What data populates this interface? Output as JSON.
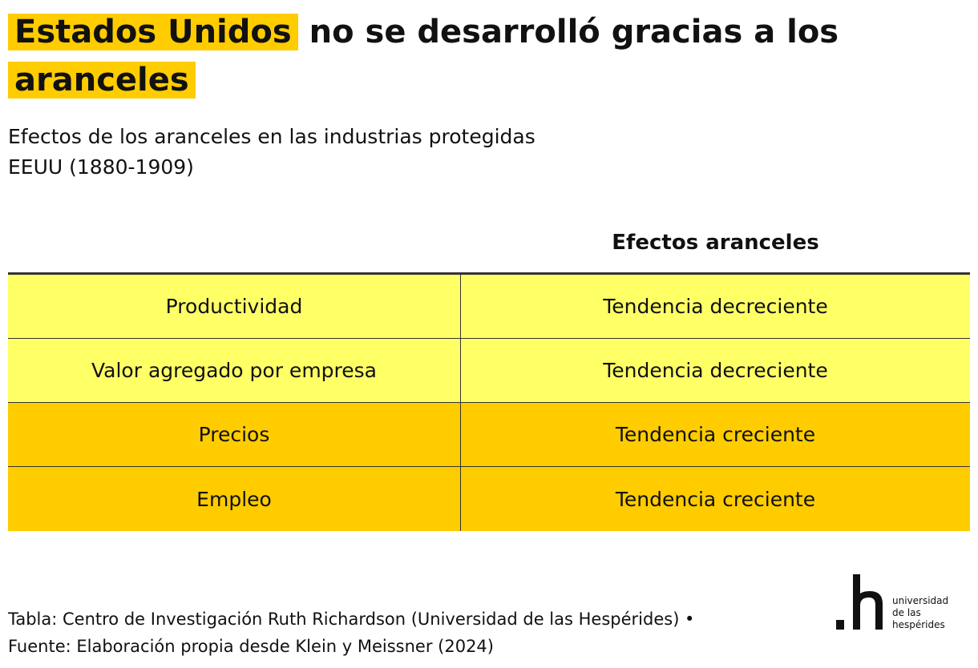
{
  "title": {
    "highlight_1": "Estados Unidos",
    "middle": "no se desarrolló gracias a los",
    "highlight_2": "aranceles"
  },
  "subtitle": {
    "line1": "Efectos de los aranceles en las industrias protegidas",
    "line2": "EEUU (1880-1909)"
  },
  "chart_data": {
    "type": "table",
    "columns": [
      "",
      "Efectos aranceles"
    ],
    "rows": [
      {
        "label": "Productividad",
        "value": "Tendencia decreciente",
        "color": "#ffff66"
      },
      {
        "label": "Valor agregado por empresa",
        "value": "Tendencia decreciente",
        "color": "#ffff66"
      },
      {
        "label": "Precios",
        "value": "Tendencia creciente",
        "color": "#ffcc00"
      },
      {
        "label": "Empleo",
        "value": "Tendencia creciente",
        "color": "#ffcc00"
      }
    ]
  },
  "footer": {
    "line1": "Tabla: Centro de Investigación Ruth Richardson (Universidad de las Hespérides) •",
    "line2": "Fuente: Elaboración propia desde Klein y Meissner (2024)"
  },
  "logo": {
    "mark": ".h",
    "line1": "universidad",
    "line2": "de las",
    "line3": "hespérides"
  },
  "colors": {
    "accent": "#ffcc00",
    "light_row": "#ffff66"
  }
}
